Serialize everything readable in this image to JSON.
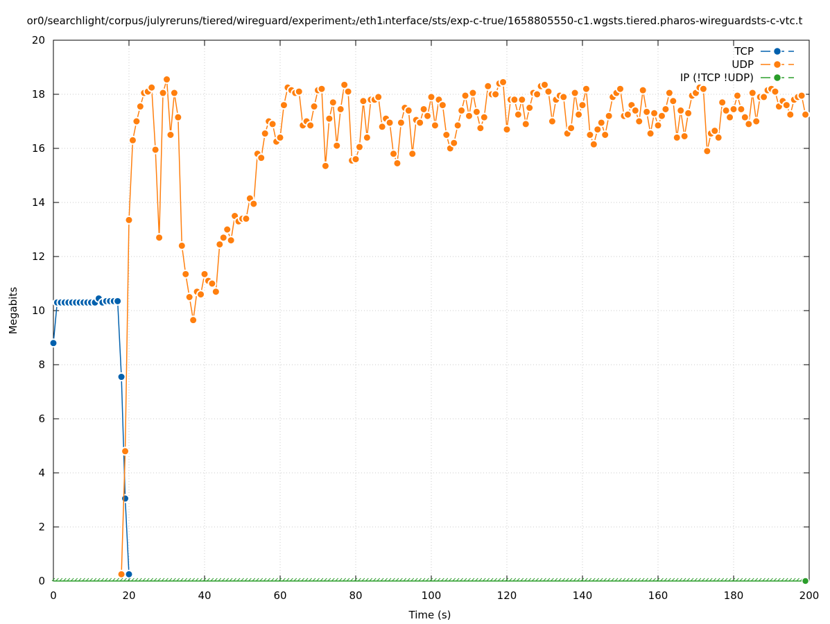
{
  "chart_data": {
    "type": "line",
    "title": "or0/searchlight/corpus/julyreruns/tiered/wireguard/experiment₂/eth1ᵢnterface/sts/exp-c-true/1658805550-c1.wgsts.tiered.pharos-wireguardsts-c-vtc.t",
    "xlabel": "Time (s)",
    "ylabel": "Megabits",
    "xlim": [
      0,
      200
    ],
    "ylim": [
      0,
      20
    ],
    "xticks": [
      0,
      20,
      40,
      60,
      80,
      100,
      120,
      140,
      160,
      180,
      200
    ],
    "yticks": [
      0,
      2,
      4,
      6,
      8,
      10,
      12,
      14,
      16,
      18,
      20
    ],
    "grid": true,
    "legend_position": "top-right",
    "series": [
      {
        "name": "TCP",
        "color": "#0060ad",
        "x": [
          0,
          1,
          2,
          3,
          4,
          5,
          6,
          7,
          8,
          9,
          10,
          11,
          12,
          13,
          14,
          15,
          16,
          17,
          18,
          19,
          20
        ],
        "y": [
          8.8,
          10.3,
          10.3,
          10.3,
          10.3,
          10.3,
          10.3,
          10.3,
          10.3,
          10.3,
          10.3,
          10.3,
          10.45,
          10.3,
          10.35,
          10.35,
          10.35,
          10.35,
          7.55,
          3.05,
          0.25
        ]
      },
      {
        "name": "UDP",
        "color": "#ff7f0e",
        "x": [
          18,
          19,
          20,
          21,
          22,
          23,
          24,
          25,
          26,
          27,
          28,
          29,
          30,
          31,
          32,
          33,
          34,
          35,
          36,
          37,
          38,
          39,
          40,
          41,
          42,
          43,
          44,
          45,
          46,
          47,
          48,
          49,
          50,
          51,
          52,
          53,
          54,
          55,
          56,
          57,
          58,
          59,
          60,
          61,
          62,
          63,
          64,
          65,
          66,
          67,
          68,
          69,
          70,
          71,
          72,
          73,
          74,
          75,
          76,
          77,
          78,
          79,
          80,
          81,
          82,
          83,
          84,
          85,
          86,
          87,
          88,
          89,
          90,
          91,
          92,
          93,
          94,
          95,
          96,
          97,
          98,
          99,
          100,
          101,
          102,
          103,
          104,
          105,
          106,
          107,
          108,
          109,
          110,
          111,
          112,
          113,
          114,
          115,
          116,
          117,
          118,
          119,
          120,
          121,
          122,
          123,
          124,
          125,
          126,
          127,
          128,
          129,
          130,
          131,
          132,
          133,
          134,
          135,
          136,
          137,
          138,
          139,
          140,
          141,
          142,
          143,
          144,
          145,
          146,
          147,
          148,
          149,
          150,
          151,
          152,
          153,
          154,
          155,
          156,
          157,
          158,
          159,
          160,
          161,
          162,
          163,
          164,
          165,
          166,
          167,
          168,
          169,
          170,
          171,
          172,
          173,
          174,
          175,
          176,
          177,
          178,
          179,
          180,
          181,
          182,
          183,
          184,
          185,
          186,
          187,
          188,
          189,
          190,
          191,
          192,
          193,
          194,
          195,
          196,
          197,
          198,
          199
        ],
        "y": [
          0.25,
          4.8,
          13.35,
          16.3,
          17.0,
          17.55,
          18.05,
          18.1,
          18.25,
          15.95,
          12.7,
          18.05,
          18.55,
          16.5,
          18.05,
          17.15,
          12.4,
          11.35,
          10.5,
          9.65,
          10.7,
          10.6,
          11.35,
          11.1,
          11.0,
          10.7,
          12.45,
          12.7,
          13.0,
          12.6,
          13.5,
          13.3,
          13.4,
          13.4,
          14.15,
          13.95,
          15.8,
          15.65,
          16.55,
          17.0,
          16.9,
          16.25,
          16.4,
          17.6,
          18.25,
          18.15,
          18.05,
          18.1,
          16.85,
          17.0,
          16.85,
          17.55,
          18.15,
          18.2,
          15.35,
          17.1,
          17.7,
          16.1,
          17.45,
          18.35,
          18.1,
          15.55,
          15.6,
          16.05,
          17.75,
          16.4,
          17.8,
          17.8,
          17.9,
          16.8,
          17.1,
          16.95,
          15.8,
          15.45,
          16.95,
          17.5,
          17.4,
          15.8,
          17.05,
          16.95,
          17.45,
          17.2,
          17.9,
          16.85,
          17.8,
          17.6,
          16.5,
          16.0,
          16.2,
          16.85,
          17.4,
          17.95,
          17.2,
          18.05,
          17.35,
          16.75,
          17.15,
          18.3,
          18.0,
          18.0,
          18.4,
          18.45,
          16.7,
          17.8,
          17.8,
          17.25,
          17.8,
          16.9,
          17.5,
          18.05,
          18.0,
          18.3,
          18.35,
          18.1,
          17.0,
          17.8,
          17.95,
          17.9,
          16.55,
          16.75,
          18.05,
          17.25,
          17.6,
          18.2,
          16.5,
          16.15,
          16.7,
          16.95,
          16.5,
          17.2,
          17.9,
          18.05,
          18.2,
          17.2,
          17.25,
          17.6,
          17.4,
          17.0,
          18.15,
          17.35,
          16.55,
          17.3,
          16.85,
          17.2,
          17.45,
          18.05,
          17.75,
          16.4,
          17.4,
          16.45,
          17.3,
          17.95,
          18.05,
          18.25,
          18.2,
          15.9,
          16.55,
          16.65,
          16.4,
          17.7,
          17.4,
          17.15,
          17.45,
          17.95,
          17.45,
          17.15,
          16.9,
          18.05,
          17.0,
          17.9,
          17.9,
          18.15,
          18.2,
          18.1,
          17.55,
          17.75,
          17.6,
          17.25,
          17.8,
          17.9,
          17.95,
          17.25
        ]
      },
      {
        "name": "IP (!TCP  !UDP)",
        "color": "#2a9d2a",
        "x": [
          0,
          199
        ],
        "y": [
          0,
          0
        ],
        "baseline_marks": true
      }
    ]
  }
}
